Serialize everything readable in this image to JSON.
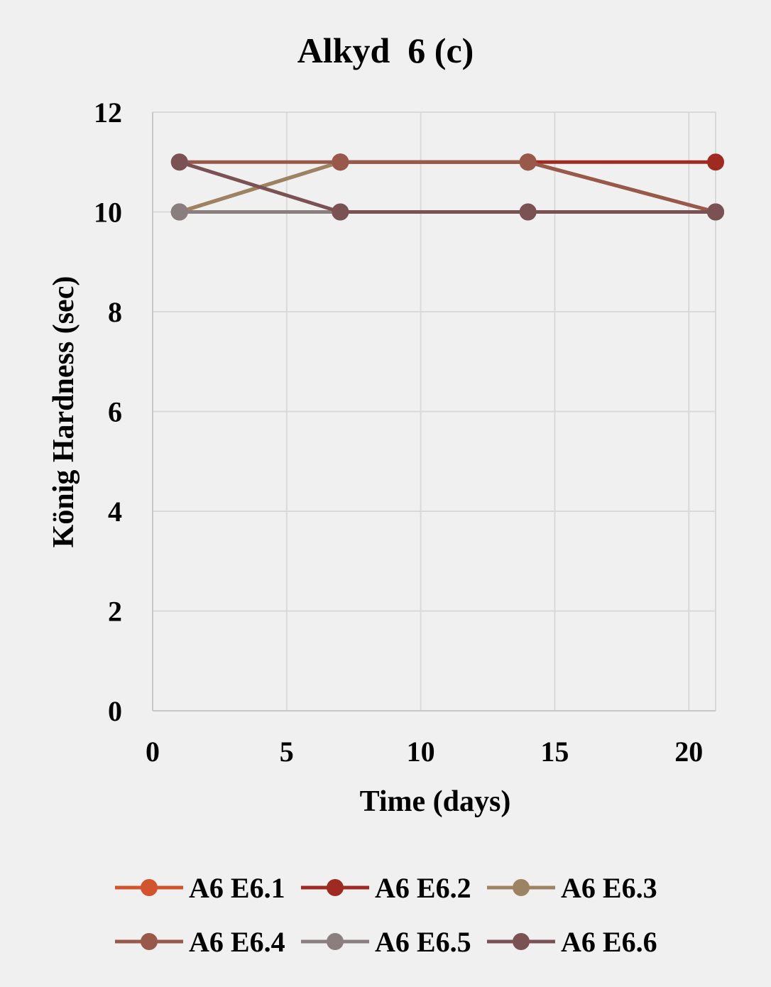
{
  "chart_data": {
    "type": "line",
    "title": "Alkyd  6 (c)",
    "xlabel": "Time (days)",
    "ylabel": "König Hardness (sec)",
    "xlim": [
      0,
      21
    ],
    "ylim": [
      0,
      12
    ],
    "x_ticks": [
      0,
      5,
      10,
      15,
      20
    ],
    "y_ticks": [
      0,
      2,
      4,
      6,
      8,
      10,
      12
    ],
    "grid": true,
    "legend_position": "bottom",
    "series": [
      {
        "name": "A6 E6.1",
        "color": "#d2532d",
        "x": [
          1,
          7,
          14,
          21
        ],
        "y": [
          10,
          11,
          11,
          10
        ]
      },
      {
        "name": "A6 E6.2",
        "color": "#9e2a22",
        "x": [
          1,
          7,
          14,
          21
        ],
        "y": [
          10,
          11,
          11,
          11
        ]
      },
      {
        "name": "A6 E6.3",
        "color": "#9c8462",
        "x": [
          1,
          7,
          14,
          21
        ],
        "y": [
          10,
          11,
          11,
          10
        ]
      },
      {
        "name": "A6 E6.4",
        "color": "#98594a",
        "x": [
          1,
          7,
          14,
          21
        ],
        "y": [
          11,
          11,
          11,
          10
        ]
      },
      {
        "name": "A6 E6.5",
        "color": "#8b7e7e",
        "x": [
          1,
          7,
          14,
          21
        ],
        "y": [
          10,
          10,
          10,
          10
        ]
      },
      {
        "name": "A6 E6.6",
        "color": "#7a5253",
        "x": [
          1,
          7,
          14,
          21
        ],
        "y": [
          11,
          10,
          10,
          10
        ]
      }
    ]
  }
}
